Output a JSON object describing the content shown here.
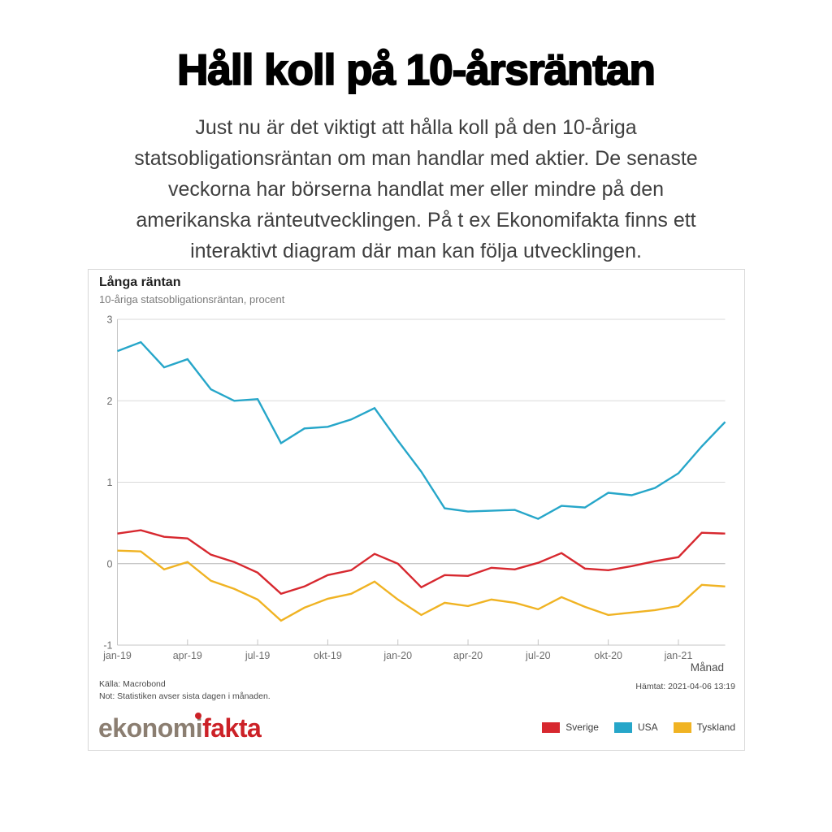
{
  "page": {
    "title": "Håll koll på 10-årsräntan",
    "paragraph": "Just nu är det viktigt att hålla koll på den 10-åriga\nstatsobligationsräntan om man handlar med aktier. De senaste\nveckorna har börserna handlat mer eller mindre på den\namerikanska ränteutvecklingen. På t ex Ekonomifakta finns ett\ninteraktivt diagram där man kan följa utvecklingen."
  },
  "card": {
    "chart_title": "Långa räntan",
    "chart_subtitle": "10-åriga statsobligationsräntan, procent",
    "x_axis_title": "Månad",
    "source": "Källa: Macrobond",
    "note": "Not: Statistiken avser sista dagen i månaden.",
    "fetched": "Hämtat: 2021-04-06 13:19",
    "logo": {
      "part1": "ekonom",
      "part2": "i",
      "part3": "fakta"
    },
    "logo_colors": {
      "ekonomi": "#8b7e71",
      "fakta": "#cc2127"
    },
    "legend": [
      {
        "label": "Sverige",
        "color": "#d7282f"
      },
      {
        "label": "USA",
        "color": "#26a6c9"
      },
      {
        "label": "Tyskland",
        "color": "#f0b323"
      }
    ]
  },
  "chart_data": {
    "type": "line",
    "title": "Långa räntan",
    "subtitle": "10-åriga statsobligationsräntan, procent",
    "xlabel": "Månad",
    "ylabel": "",
    "ylim": [
      -1,
      3
    ],
    "y_ticks": [
      3,
      2,
      1,
      0,
      -1
    ],
    "grid": "horizontal",
    "legend_position": "bottom-right",
    "x": [
      "jan-19",
      "feb-19",
      "mar-19",
      "apr-19",
      "maj-19",
      "jun-19",
      "jul-19",
      "aug-19",
      "sep-19",
      "okt-19",
      "nov-19",
      "dec-19",
      "jan-20",
      "feb-20",
      "mar-20",
      "apr-20",
      "maj-20",
      "jun-20",
      "jul-20",
      "aug-20",
      "sep-20",
      "okt-20",
      "nov-20",
      "dec-20",
      "jan-21",
      "feb-21",
      "mar-21"
    ],
    "x_tick_labels": [
      "jan-19",
      "apr-19",
      "jul-19",
      "okt-19",
      "jan-20",
      "apr-20",
      "jul-20",
      "okt-20",
      "jan-21"
    ],
    "x_tick_every": 3,
    "series": [
      {
        "name": "Sverige",
        "color": "#d7282f",
        "values": [
          0.37,
          0.41,
          0.33,
          0.31,
          0.11,
          0.02,
          -0.11,
          -0.37,
          -0.28,
          -0.14,
          -0.08,
          0.12,
          0.0,
          -0.29,
          -0.14,
          -0.15,
          -0.05,
          -0.07,
          0.01,
          0.13,
          -0.06,
          -0.08,
          -0.03,
          0.03,
          0.08,
          0.38,
          0.37
        ]
      },
      {
        "name": "USA",
        "color": "#26a6c9",
        "values": [
          2.61,
          2.72,
          2.41,
          2.51,
          2.14,
          2.0,
          2.02,
          1.48,
          1.66,
          1.68,
          1.77,
          1.91,
          1.51,
          1.13,
          0.68,
          0.64,
          0.65,
          0.66,
          0.55,
          0.71,
          0.69,
          0.87,
          0.84,
          0.93,
          1.11,
          1.44,
          1.74
        ]
      },
      {
        "name": "Tyskland",
        "color": "#f0b323",
        "values": [
          0.16,
          0.15,
          -0.07,
          0.02,
          -0.21,
          -0.31,
          -0.44,
          -0.7,
          -0.54,
          -0.43,
          -0.37,
          -0.22,
          -0.44,
          -0.63,
          -0.48,
          -0.52,
          -0.44,
          -0.48,
          -0.56,
          -0.41,
          -0.53,
          -0.63,
          -0.6,
          -0.57,
          -0.52,
          -0.26,
          -0.28
        ]
      }
    ]
  }
}
